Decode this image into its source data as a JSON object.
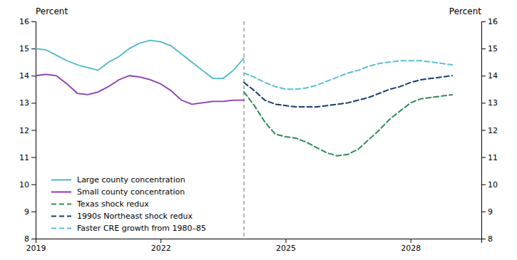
{
  "chart_data": {
    "type": "line",
    "ylabel": "Percent",
    "y2label": "Percent",
    "xlim": [
      2019.0,
      2029.7
    ],
    "xticks": [
      2019,
      2022,
      2025,
      2028
    ],
    "ylim": [
      8,
      16
    ],
    "yticks": [
      8,
      9,
      10,
      11,
      12,
      13,
      14,
      15,
      16
    ],
    "y2lim": [
      8,
      16
    ],
    "y2ticks": [
      8,
      9,
      10,
      11,
      12,
      13,
      14,
      15,
      16
    ],
    "grid": false,
    "legend": "lower left",
    "vlines": [
      2024.0
    ],
    "series": [
      {
        "name": "Large county concentration",
        "color": "#4ab8c8",
        "line_style": "solid",
        "x": [
          2019.0,
          2019.25,
          2019.5,
          2019.75,
          2020.0,
          2020.25,
          2020.5,
          2020.75,
          2021.0,
          2021.25,
          2021.5,
          2021.75,
          2022.0,
          2022.25,
          2022.5,
          2022.75,
          2023.0,
          2023.25,
          2023.5,
          2023.75,
          2024.0
        ],
        "values": [
          15.0,
          14.95,
          14.75,
          14.55,
          14.4,
          14.3,
          14.2,
          14.5,
          14.7,
          15.0,
          15.2,
          15.3,
          15.25,
          15.1,
          14.8,
          14.5,
          14.2,
          13.9,
          13.9,
          14.2,
          14.65
        ]
      },
      {
        "name": "Small county concentration",
        "color": "#8b35b5",
        "line_style": "solid",
        "x": [
          2019.0,
          2019.25,
          2019.5,
          2019.75,
          2020.0,
          2020.25,
          2020.5,
          2020.75,
          2021.0,
          2021.25,
          2021.5,
          2021.75,
          2022.0,
          2022.25,
          2022.5,
          2022.75,
          2023.0,
          2023.25,
          2023.5,
          2023.75,
          2024.0
        ],
        "values": [
          14.0,
          14.05,
          14.0,
          13.7,
          13.35,
          13.3,
          13.4,
          13.6,
          13.85,
          14.0,
          13.95,
          13.85,
          13.7,
          13.45,
          13.1,
          12.95,
          13.0,
          13.05,
          13.05,
          13.1,
          13.1
        ]
      },
      {
        "name": "Texas shock redux",
        "color": "#2e8b57",
        "line_style": "dashed",
        "x": [
          2024.0,
          2024.25,
          2024.5,
          2024.75,
          2025.0,
          2025.25,
          2025.5,
          2025.75,
          2026.0,
          2026.25,
          2026.5,
          2026.75,
          2027.0,
          2027.25,
          2027.5,
          2027.75,
          2028.0,
          2028.25,
          2028.5,
          2028.75,
          2029.0
        ],
        "values": [
          13.4,
          12.9,
          12.3,
          11.85,
          11.75,
          11.7,
          11.55,
          11.35,
          11.15,
          11.05,
          11.1,
          11.3,
          11.65,
          12.0,
          12.4,
          12.7,
          13.0,
          13.15,
          13.2,
          13.25,
          13.3
        ]
      },
      {
        "name": "1990s Northeast shock redux",
        "color": "#1a3d6b",
        "line_style": "dashed",
        "x": [
          2024.0,
          2024.25,
          2024.5,
          2024.75,
          2025.0,
          2025.25,
          2025.5,
          2025.75,
          2026.0,
          2026.25,
          2026.5,
          2026.75,
          2027.0,
          2027.25,
          2027.5,
          2027.75,
          2028.0,
          2028.25,
          2028.5,
          2028.75,
          2029.0
        ],
        "values": [
          13.75,
          13.45,
          13.1,
          12.95,
          12.9,
          12.85,
          12.85,
          12.85,
          12.9,
          12.95,
          13.0,
          13.1,
          13.2,
          13.35,
          13.5,
          13.6,
          13.75,
          13.85,
          13.9,
          13.95,
          14.0
        ]
      },
      {
        "name": "Faster CRE growth from 1980–85",
        "color": "#5bbfd4",
        "line_style": "dashed",
        "x": [
          2024.0,
          2024.25,
          2024.5,
          2024.75,
          2025.0,
          2025.25,
          2025.5,
          2025.75,
          2026.0,
          2026.25,
          2026.5,
          2026.75,
          2027.0,
          2027.25,
          2027.5,
          2027.75,
          2028.0,
          2028.25,
          2028.5,
          2028.75,
          2029.0
        ],
        "values": [
          14.1,
          13.95,
          13.75,
          13.6,
          13.5,
          13.5,
          13.55,
          13.65,
          13.8,
          13.95,
          14.1,
          14.2,
          14.35,
          14.45,
          14.5,
          14.55,
          14.55,
          14.55,
          14.5,
          14.45,
          14.4
        ]
      }
    ]
  }
}
